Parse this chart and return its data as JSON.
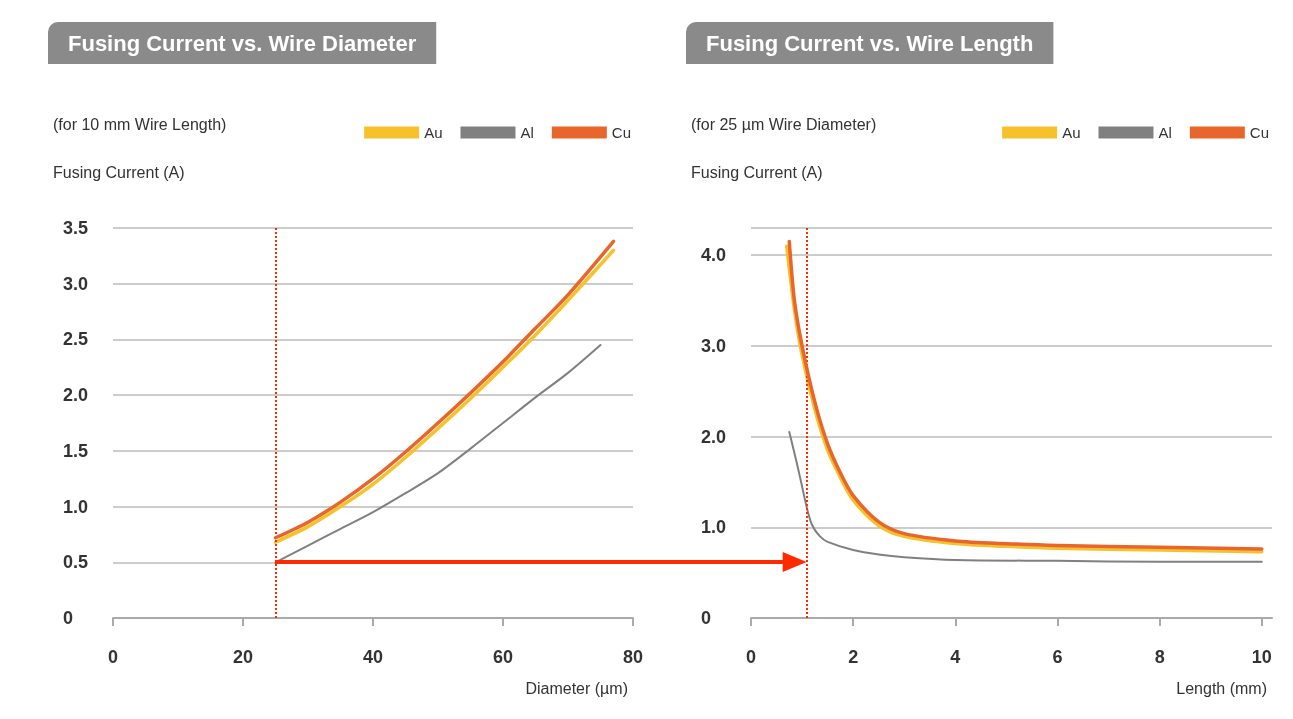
{
  "chart_data": [
    {
      "type": "line",
      "title": "Fusing Current vs. Wire Diameter",
      "subtitle": "(for 10 mm Wire Length)",
      "ylabel": "Fusing Current (A)",
      "xlabel": "Diameter (µm)",
      "series": [
        {
          "name": "Au",
          "color": "#f6c12a",
          "x": [
            25,
            30,
            35,
            40,
            45,
            50,
            55,
            60,
            65,
            70,
            77
          ],
          "values": [
            0.68,
            0.82,
            1.0,
            1.2,
            1.44,
            1.7,
            1.97,
            2.25,
            2.54,
            2.85,
            3.3
          ]
        },
        {
          "name": "Al",
          "color": "#808080",
          "x": [
            25,
            30,
            35,
            40,
            45,
            50,
            55,
            60,
            65,
            70,
            75
          ],
          "values": [
            0.5,
            0.65,
            0.8,
            0.95,
            1.12,
            1.3,
            1.52,
            1.75,
            1.98,
            2.2,
            2.45
          ]
        },
        {
          "name": "Cu",
          "color": "#e8662c",
          "x": [
            25,
            30,
            35,
            40,
            45,
            50,
            55,
            60,
            65,
            70,
            77
          ],
          "values": [
            0.72,
            0.86,
            1.04,
            1.25,
            1.49,
            1.75,
            2.02,
            2.3,
            2.6,
            2.9,
            3.38
          ]
        }
      ],
      "xlim": [
        0,
        80
      ],
      "xticks": [
        0,
        20,
        40,
        60,
        80
      ],
      "ylim": [
        0,
        3.5
      ],
      "yticks": [
        {
          "value": 0,
          "label": "0"
        },
        0.5,
        {
          "value": 1,
          "label": "1.0"
        },
        1.5,
        {
          "value": 2,
          "label": "2.0"
        },
        2.5,
        {
          "value": 3,
          "label": "3.0"
        },
        3.5
      ],
      "ref_lines": [
        {
          "axis": "x",
          "value": 25,
          "color": "#ff2a00",
          "line_style": "dotted"
        }
      ],
      "grid": "y",
      "legend": "top right",
      "marker": "none"
    },
    {
      "type": "line",
      "title": "Fusing Current vs. Wire Length",
      "subtitle": "(for 25 µm Wire Diameter)",
      "ylabel": "Fusing Current (A)",
      "xlabel": "Length (mm)",
      "series": [
        {
          "name": "Au",
          "color": "#f6c12a",
          "x": [
            0.7,
            0.85,
            1.0,
            1.25,
            1.5,
            1.75,
            2.0,
            2.5,
            3,
            4,
            5,
            6,
            8,
            10
          ],
          "values": [
            4.1,
            3.4,
            2.9,
            2.3,
            1.85,
            1.55,
            1.3,
            1.02,
            0.9,
            0.82,
            0.79,
            0.77,
            0.75,
            0.73
          ]
        },
        {
          "name": "Al",
          "color": "#808080",
          "x": [
            0.75,
            0.9,
            1.0,
            1.1,
            1.2,
            1.35,
            1.5,
            2,
            2.5,
            3,
            4,
            6,
            8,
            10
          ],
          "values": [
            2.05,
            1.7,
            1.45,
            1.2,
            1.02,
            0.9,
            0.84,
            0.75,
            0.7,
            0.67,
            0.64,
            0.63,
            0.62,
            0.62
          ]
        },
        {
          "name": "Cu",
          "color": "#e8662c",
          "x": [
            0.75,
            0.85,
            1.0,
            1.25,
            1.5,
            1.75,
            2.0,
            2.5,
            3,
            4,
            5,
            6,
            8,
            10
          ],
          "values": [
            4.15,
            3.5,
            3.0,
            2.38,
            1.92,
            1.6,
            1.35,
            1.06,
            0.93,
            0.85,
            0.82,
            0.8,
            0.78,
            0.76
          ]
        }
      ],
      "xlim": [
        0,
        10.2
      ],
      "xticks": [
        0,
        2,
        4,
        6,
        8,
        10
      ],
      "ylim": [
        0,
        4.3
      ],
      "yticks": [
        {
          "value": 0,
          "label": "0"
        },
        {
          "value": 1,
          "label": "1.0"
        },
        {
          "value": 2,
          "label": "2.0"
        },
        {
          "value": 3,
          "label": "3.0"
        },
        {
          "value": 4,
          "label": "4.0"
        }
      ],
      "ref_lines": [
        {
          "axis": "x",
          "value": 1.1,
          "color": "#ff2a00",
          "line_style": "dotted"
        }
      ],
      "grid": "y",
      "legend": "top right",
      "marker": "none"
    }
  ]
}
